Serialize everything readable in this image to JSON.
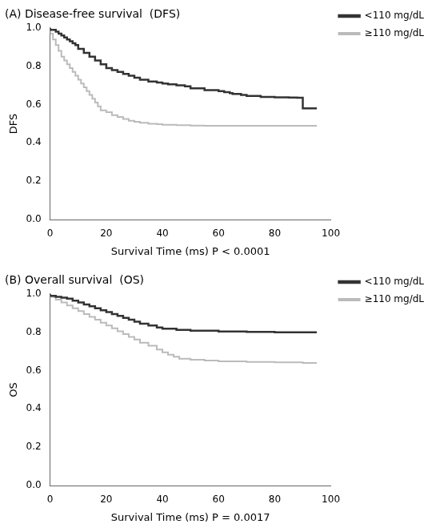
{
  "chart_data": [
    {
      "type": "step",
      "title": "(A) Disease-free survival  (DFS)",
      "xlabel": "Survival Time (ms) P < 0.0001",
      "ylabel": "DFS",
      "xlim": [
        0,
        100
      ],
      "ylim": [
        0.0,
        1.0
      ],
      "xticks": [
        0,
        20,
        40,
        60,
        80,
        100
      ],
      "yticks": [
        {
          "value": 0.0,
          "label": "0.0"
        },
        0.2,
        0.4,
        0.6,
        0.8,
        {
          "value": 1.0,
          "label": "1.0"
        }
      ],
      "grid": false,
      "legend": "right",
      "series": [
        {
          "name": "<110 mg/dL",
          "color": "#333333",
          "x": [
            0,
            2,
            3,
            4,
            5,
            6,
            7,
            8,
            9,
            10,
            12,
            14,
            16,
            18,
            20,
            22,
            24,
            26,
            28,
            30,
            32,
            35,
            38,
            40,
            42,
            45,
            48,
            50,
            55,
            60,
            62,
            64,
            65,
            68,
            70,
            75,
            80,
            85,
            88,
            90,
            92,
            95
          ],
          "values": [
            1.0,
            0.99,
            0.98,
            0.97,
            0.96,
            0.95,
            0.94,
            0.93,
            0.92,
            0.91,
            0.89,
            0.87,
            0.85,
            0.83,
            0.81,
            0.79,
            0.78,
            0.77,
            0.76,
            0.75,
            0.74,
            0.73,
            0.72,
            0.715,
            0.71,
            0.705,
            0.7,
            0.695,
            0.685,
            0.675,
            0.67,
            0.665,
            0.66,
            0.655,
            0.65,
            0.645,
            0.64,
            0.638,
            0.636,
            0.635,
            0.58,
            0.58
          ]
        },
        {
          "name": "≥110 mg/dL",
          "color": "#bbbbbb",
          "x": [
            0,
            1,
            2,
            3,
            4,
            5,
            6,
            7,
            8,
            9,
            10,
            11,
            12,
            13,
            14,
            15,
            16,
            17,
            18,
            20,
            22,
            24,
            26,
            28,
            30,
            32,
            35,
            38,
            40,
            45,
            50,
            55,
            60,
            70,
            80,
            92,
            95
          ],
          "values": [
            1.0,
            0.97,
            0.94,
            0.91,
            0.88,
            0.85,
            0.83,
            0.81,
            0.79,
            0.77,
            0.75,
            0.73,
            0.71,
            0.69,
            0.67,
            0.65,
            0.63,
            0.61,
            0.59,
            0.57,
            0.56,
            0.545,
            0.535,
            0.525,
            0.515,
            0.51,
            0.505,
            0.5,
            0.498,
            0.494,
            0.492,
            0.49,
            0.489,
            0.489,
            0.489,
            0.489,
            0.489
          ]
        }
      ]
    },
    {
      "type": "step",
      "title": "(B) Overall survival  (OS)",
      "xlabel": "Survival Time (ms) P = 0.0017",
      "ylabel": "OS",
      "xlim": [
        0,
        100
      ],
      "ylim": [
        0.0,
        1.0
      ],
      "xticks": [
        0,
        20,
        40,
        60,
        80,
        100
      ],
      "yticks": [
        {
          "value": 0.0,
          "label": "0.0"
        },
        0.2,
        0.4,
        0.6,
        0.8,
        {
          "value": 1.0,
          "label": "1.0"
        }
      ],
      "grid": false,
      "legend": "right",
      "series": [
        {
          "name": "<110 mg/dL",
          "color": "#333333",
          "x": [
            0,
            2,
            4,
            6,
            8,
            10,
            12,
            14,
            16,
            18,
            20,
            22,
            24,
            26,
            28,
            30,
            32,
            35,
            38,
            40,
            45,
            50,
            60,
            70,
            80,
            90,
            95
          ],
          "values": [
            1.0,
            0.99,
            0.985,
            0.98,
            0.975,
            0.965,
            0.955,
            0.945,
            0.935,
            0.925,
            0.915,
            0.905,
            0.895,
            0.885,
            0.875,
            0.865,
            0.855,
            0.845,
            0.835,
            0.825,
            0.818,
            0.812,
            0.808,
            0.804,
            0.802,
            0.8,
            0.8
          ]
        },
        {
          "name": "≥110 mg/dL",
          "color": "#bbbbbb",
          "x": [
            0,
            2,
            4,
            6,
            8,
            10,
            12,
            14,
            16,
            18,
            20,
            22,
            24,
            26,
            28,
            30,
            32,
            35,
            38,
            40,
            42,
            44,
            46,
            50,
            55,
            60,
            70,
            80,
            90,
            95
          ],
          "values": [
            1.0,
            0.985,
            0.97,
            0.955,
            0.94,
            0.925,
            0.91,
            0.895,
            0.88,
            0.865,
            0.85,
            0.835,
            0.82,
            0.805,
            0.79,
            0.775,
            0.762,
            0.745,
            0.73,
            0.71,
            0.695,
            0.682,
            0.672,
            0.662,
            0.656,
            0.652,
            0.648,
            0.645,
            0.643,
            0.64
          ]
        }
      ]
    }
  ]
}
